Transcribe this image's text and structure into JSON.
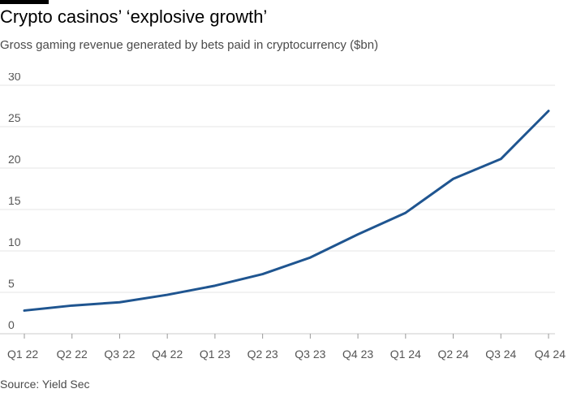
{
  "header": {
    "title": "Crypto casinos’ ‘explosive growth’",
    "subtitle": "Gross gaming revenue generated by bets paid in cryptocurrency ($bn)"
  },
  "footer": {
    "source": "Source: Yield Sec"
  },
  "colors": {
    "line": "#1f5590",
    "grid": "#e6e6e6",
    "axis": "#cccccc"
  },
  "chart_data": {
    "type": "line",
    "title": "Crypto casinos’ ‘explosive growth’",
    "subtitle": "Gross gaming revenue generated by bets paid in cryptocurrency ($bn)",
    "xlabel": "",
    "ylabel": "",
    "categories": [
      "Q1 22",
      "Q2 22",
      "Q3 22",
      "Q4 22",
      "Q1 23",
      "Q2 23",
      "Q3 23",
      "Q4 23",
      "Q1 24",
      "Q2 24",
      "Q3 24",
      "Q4 24"
    ],
    "series": [
      {
        "values": [
          2.8,
          3.4,
          3.8,
          4.7,
          5.8,
          7.2,
          9.2,
          12.0,
          14.6,
          18.7,
          21.1,
          26.9
        ]
      }
    ],
    "yticks": [
      "0",
      "5",
      "10",
      "15",
      "20",
      "25",
      "30"
    ],
    "ylim": [
      0,
      30
    ],
    "grid": true,
    "legend": "none"
  }
}
